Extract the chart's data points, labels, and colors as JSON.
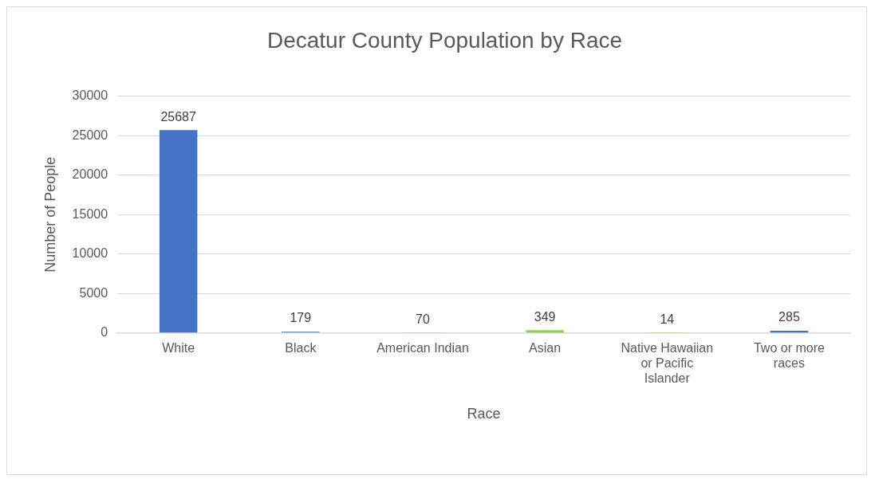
{
  "chart_data": {
    "type": "bar",
    "title": "Decatur County Population by Race",
    "xlabel": "Race",
    "ylabel": "Number of People",
    "categories": [
      "White",
      "Black",
      "American Indian",
      "Asian",
      "Native Hawaiian or Pacific Islander",
      "Two or more races"
    ],
    "values": [
      25687,
      179,
      70,
      349,
      14,
      285
    ],
    "colors": [
      "#4472c4",
      "#5b9bd5",
      "#a5a5a5",
      "#92d050",
      "#ffc000",
      "#4472c4"
    ],
    "ylim": [
      0,
      30000
    ],
    "yticks": [
      0,
      5000,
      10000,
      15000,
      20000,
      25000,
      30000
    ],
    "grid": "y",
    "data_labels": true,
    "legend": false
  }
}
